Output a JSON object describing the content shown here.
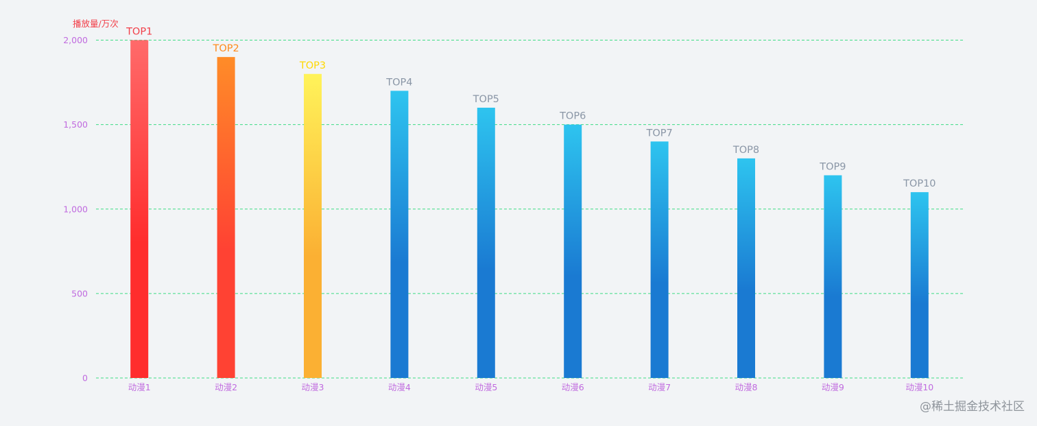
{
  "chart_data": {
    "type": "bar",
    "ylabel": "播放量/万次",
    "categories": [
      "动漫1",
      "动漫2",
      "动漫3",
      "动漫4",
      "动漫5",
      "动漫6",
      "动漫7",
      "动漫8",
      "动漫9",
      "动漫10"
    ],
    "values": [
      2000,
      1900,
      1800,
      1700,
      1600,
      1500,
      1400,
      1300,
      1200,
      1100
    ],
    "bar_labels": [
      "TOP1",
      "TOP2",
      "TOP3",
      "TOP4",
      "TOP5",
      "TOP6",
      "TOP7",
      "TOP8",
      "TOP9",
      "TOP10"
    ],
    "ylim": [
      0,
      2000
    ],
    "yticks": [
      0,
      500,
      1000,
      1500,
      2000
    ],
    "ytick_labels": [
      "0",
      "500",
      "1,000",
      "1,500",
      "2,000"
    ],
    "grid": true,
    "legend": false
  },
  "colors": {
    "background": "#f2f4f6",
    "grid": "#3ddc84",
    "axis_label": "#c06adf",
    "ylabel": "#f23b45",
    "bar_gradients": [
      [
        "#ff6a6a",
        "#ff2d2d"
      ],
      [
        "#ff8c28",
        "#ff4233"
      ],
      [
        "#fff35a",
        "#fbb033"
      ],
      [
        "#2ec4ef",
        "#1a7ad2"
      ],
      [
        "#2ec4ef",
        "#1a7ad2"
      ],
      [
        "#2ec4ef",
        "#1a7ad2"
      ],
      [
        "#2ec4ef",
        "#1a7ad2"
      ],
      [
        "#2ec4ef",
        "#1a7ad2"
      ],
      [
        "#2ec4ef",
        "#1a7ad2"
      ],
      [
        "#2ec4ef",
        "#1a7ad2"
      ]
    ],
    "bar_label_colors": [
      "#f2404a",
      "#ff8a1c",
      "#ffd800",
      "#8a96a6",
      "#8a96a6",
      "#8a96a6",
      "#8a96a6",
      "#8a96a6",
      "#8a96a6",
      "#8a96a6"
    ]
  },
  "watermark": "@稀土掘金技术社区"
}
